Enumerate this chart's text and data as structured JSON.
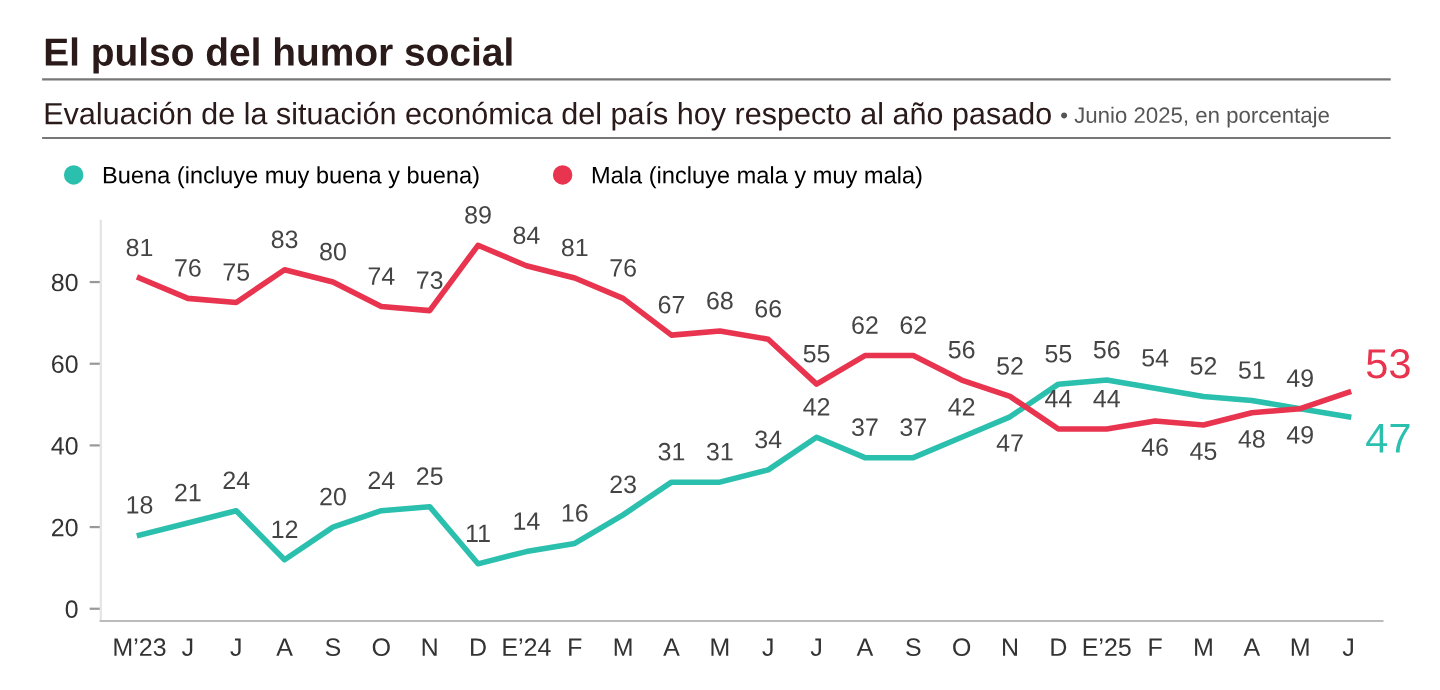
{
  "chart_data": {
    "type": "line",
    "title": "El pulso del humor social",
    "subtitle": "Evaluación de la situación económica del país hoy respecto al año pasado",
    "annotations": [
      "• Junio 2025, en porcentaje"
    ],
    "categories": [
      "M’23",
      "J",
      "J",
      "A",
      "S",
      "O",
      "N",
      "D",
      "E’24",
      "F",
      "M",
      "A",
      "M",
      "J",
      "J",
      "A",
      "S",
      "O",
      "N",
      "D",
      "E’25",
      "F",
      "M",
      "A",
      "M",
      "J"
    ],
    "series": [
      {
        "name": "Buena (incluye muy buena y buena)",
        "color": "#2bbfae",
        "values": [
          18,
          21,
          24,
          12,
          20,
          24,
          25,
          11,
          14,
          16,
          23,
          31,
          31,
          34,
          42,
          37,
          37,
          42,
          47,
          55,
          56,
          54,
          52,
          51,
          49,
          47
        ]
      },
      {
        "name": "Mala (incluye mala y muy mala)",
        "color": "#e8344e",
        "values": [
          81,
          76,
          75,
          83,
          80,
          74,
          73,
          89,
          84,
          81,
          76,
          67,
          68,
          66,
          55,
          62,
          62,
          56,
          52,
          44,
          44,
          46,
          45,
          48,
          49,
          53
        ]
      }
    ],
    "ylim": [
      -3,
      95
    ],
    "yticks": [
      0,
      20,
      40,
      60,
      80
    ],
    "grid": false,
    "legend": "top left",
    "data_labels": true,
    "marker": "none",
    "line_style": "solid"
  }
}
